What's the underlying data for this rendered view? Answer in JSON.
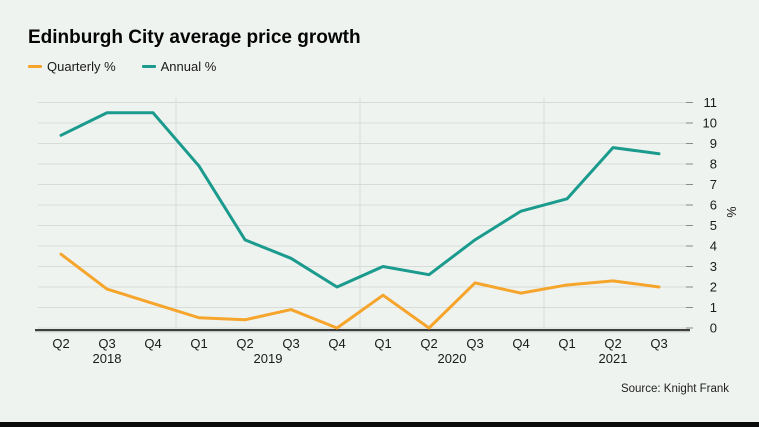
{
  "title": "Edinburgh City average price growth",
  "legend": {
    "items": [
      {
        "label": "Quarterly %",
        "color": "#F6A52C"
      },
      {
        "label": "Annual %",
        "color": "#1B9B8D"
      }
    ]
  },
  "source_note": "Source: Knight Frank",
  "colors": {
    "background": "#eff3f0",
    "gridline": "#d7dcd9",
    "axis_line": "#3d3d3d",
    "tick": "#8a8a8a",
    "label_text": "#1a1a1a",
    "quarterly_series": "#F6A52C",
    "annual_series": "#1B9B8D"
  },
  "chart_data": {
    "type": "line",
    "categories": [
      "Q2 2018",
      "Q3 2018",
      "Q4 2018",
      "Q1 2019",
      "Q2 2019",
      "Q3 2019",
      "Q4 2019",
      "Q1 2020",
      "Q2 2020",
      "Q3 2020",
      "Q4 2020",
      "Q1 2021",
      "Q2 2021",
      "Q3 2021"
    ],
    "x_tick_labels": [
      "Q2",
      "Q3",
      "Q4",
      "Q1",
      "Q2",
      "Q3",
      "Q4",
      "Q1",
      "Q2",
      "Q3",
      "Q4",
      "Q1",
      "Q2",
      "Q3"
    ],
    "year_labels": [
      {
        "label": "2018",
        "center_index": 1
      },
      {
        "label": "2019",
        "center_index": 4.5
      },
      {
        "label": "2020",
        "center_index": 8.5
      },
      {
        "label": "2021",
        "center_index": 12
      }
    ],
    "series": [
      {
        "name": "Quarterly %",
        "color": "#F6A52C",
        "values": [
          3.6,
          1.9,
          1.2,
          0.5,
          0.4,
          0.9,
          0.0,
          1.6,
          0.0,
          2.2,
          1.7,
          2.1,
          2.3,
          2.0
        ]
      },
      {
        "name": "Annual %",
        "color": "#1B9B8D",
        "values": [
          9.4,
          10.5,
          10.5,
          7.9,
          4.3,
          3.4,
          2.0,
          3.0,
          2.6,
          4.3,
          5.7,
          6.3,
          8.8,
          8.5
        ]
      }
    ],
    "ylabel": "%",
    "y_ticks": [
      0,
      1,
      2,
      3,
      4,
      5,
      6,
      7,
      8,
      9,
      10,
      11
    ],
    "ylim": [
      0,
      11
    ],
    "grid": "horizontal lines each integer; vertical separators at year boundaries",
    "legend_position": "top-left",
    "y_axis_side": "right"
  }
}
